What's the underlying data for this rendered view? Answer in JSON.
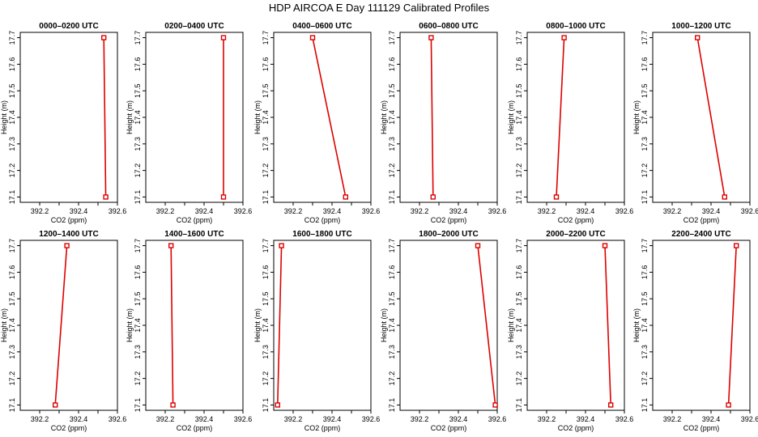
{
  "title": "HDP AIRCOA E  Day 111129  Calibrated Profiles",
  "chart_data": {
    "type": "line",
    "xlabel": "CO2 (ppm)",
    "ylabel": "Height (m)",
    "xlim": [
      392.1,
      392.6
    ],
    "ylim": [
      17.08,
      17.72
    ],
    "xticks": [
      392.2,
      392.4,
      392.6
    ],
    "xtick_labels": [
      "392.2",
      "392.4",
      "392.6"
    ],
    "xticks_minor": [
      392.3,
      392.5
    ],
    "xtick_labels_minor": [
      "",
      ""
    ],
    "yticks": [
      17.1,
      17.2,
      17.3,
      17.4,
      17.5,
      17.6,
      17.7
    ],
    "ytick_labels": [
      "17.1",
      "17.2",
      "17.3",
      "17.4",
      "17.5",
      "17.6",
      "17.7"
    ],
    "panels": [
      {
        "title": "0000–0200 UTC",
        "points": [
          {
            "x": 392.54,
            "y": 17.1
          },
          {
            "x": 392.53,
            "y": 17.7
          }
        ]
      },
      {
        "title": "0200–0400 UTC",
        "points": [
          {
            "x": 392.5,
            "y": 17.1
          },
          {
            "x": 392.5,
            "y": 17.7
          }
        ]
      },
      {
        "title": "0400–0600 UTC",
        "points": [
          {
            "x": 392.47,
            "y": 17.1
          },
          {
            "x": 392.3,
            "y": 17.7
          }
        ]
      },
      {
        "title": "0600–0800 UTC",
        "points": [
          {
            "x": 392.27,
            "y": 17.1
          },
          {
            "x": 392.26,
            "y": 17.7
          }
        ]
      },
      {
        "title": "0800–1000 UTC",
        "points": [
          {
            "x": 392.25,
            "y": 17.1
          },
          {
            "x": 392.29,
            "y": 17.7
          }
        ]
      },
      {
        "title": "1000–1200 UTC",
        "points": [
          {
            "x": 392.47,
            "y": 17.1
          },
          {
            "x": 392.33,
            "y": 17.7
          }
        ]
      },
      {
        "title": "1200–1400 UTC",
        "points": [
          {
            "x": 392.28,
            "y": 17.1
          },
          {
            "x": 392.34,
            "y": 17.7
          }
        ]
      },
      {
        "title": "1400–1600 UTC",
        "points": [
          {
            "x": 392.24,
            "y": 17.1
          },
          {
            "x": 392.23,
            "y": 17.7
          }
        ]
      },
      {
        "title": "1600–1800 UTC",
        "points": [
          {
            "x": 392.12,
            "y": 17.1
          },
          {
            "x": 392.14,
            "y": 17.7
          }
        ]
      },
      {
        "title": "1800–2000 UTC",
        "points": [
          {
            "x": 392.59,
            "y": 17.1
          },
          {
            "x": 392.5,
            "y": 17.7
          }
        ]
      },
      {
        "title": "2000–2200 UTC",
        "points": [
          {
            "x": 392.53,
            "y": 17.1
          },
          {
            "x": 392.5,
            "y": 17.7
          }
        ]
      },
      {
        "title": "2200–2400 UTC",
        "points": [
          {
            "x": 392.49,
            "y": 17.1
          },
          {
            "x": 392.53,
            "y": 17.7
          }
        ]
      }
    ]
  }
}
